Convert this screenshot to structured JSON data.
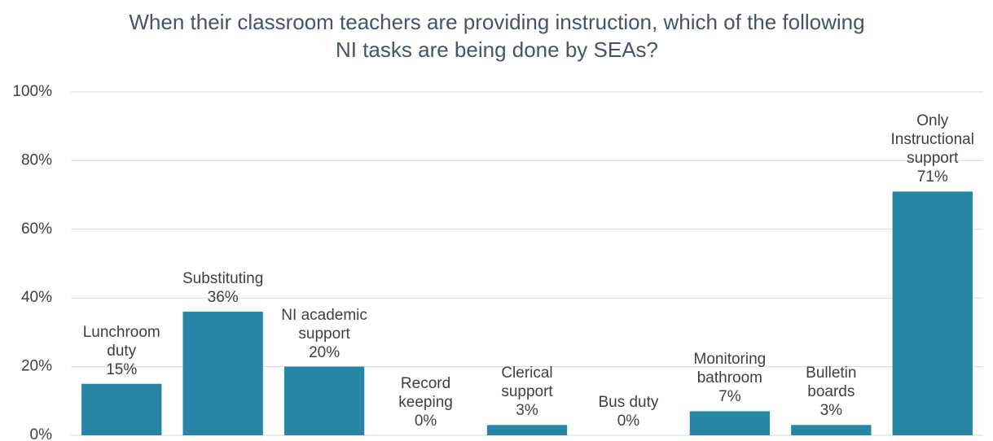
{
  "chart_data": {
    "type": "bar",
    "title": "When their classroom teachers are providing instruction, which of the following NI tasks are being done by SEAs?",
    "categories": [
      "Lunchroom duty",
      "Substituting",
      "NI academic support",
      "Record keeping",
      "Clerical support",
      "Bus duty",
      "Monitoring bathroom",
      "Bulletin boards",
      "Only Instructional support"
    ],
    "values": [
      15,
      36,
      20,
      0,
      3,
      0,
      7,
      3,
      71
    ],
    "value_labels": [
      "15%",
      "36%",
      "20%",
      "0%",
      "3%",
      "0%",
      "7%",
      "3%",
      "71%"
    ],
    "color": "#2785a6",
    "ylim": [
      0,
      100
    ],
    "yticks": [
      {
        "value": 0,
        "label": "0%"
      },
      {
        "value": 20,
        "label": "20%"
      },
      {
        "value": 40,
        "label": "40%"
      },
      {
        "value": 60,
        "label": "60%"
      },
      {
        "value": 80,
        "label": "80%"
      },
      {
        "value": 100,
        "label": "100%"
      }
    ],
    "grid": true
  }
}
